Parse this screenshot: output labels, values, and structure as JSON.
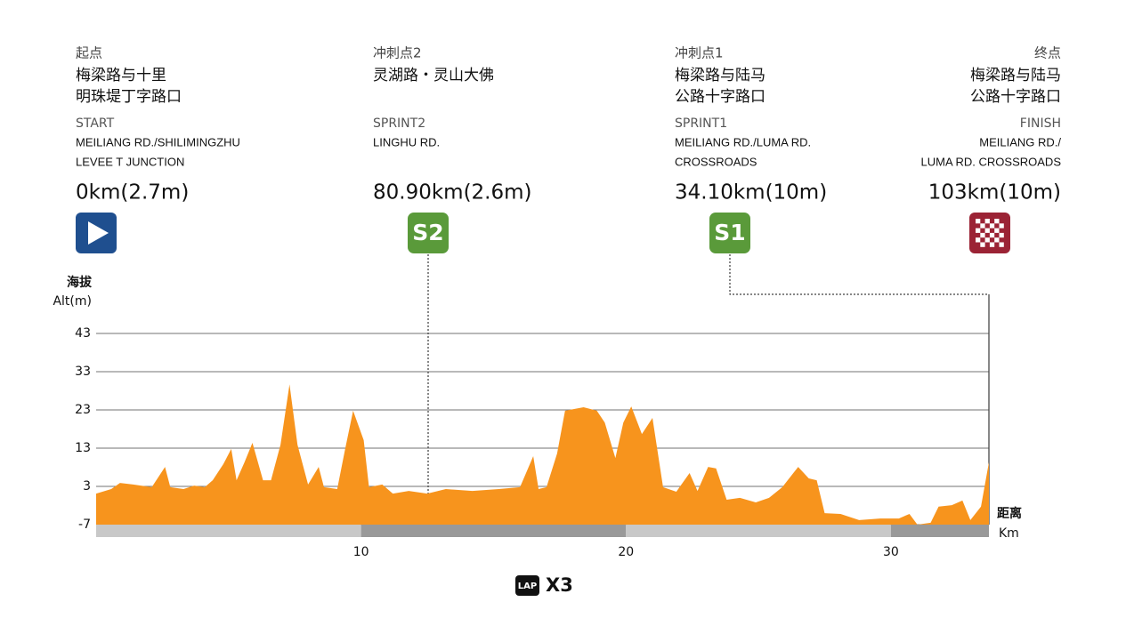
{
  "header": {
    "columns": [
      {
        "cn_label": "起点",
        "cn_name": [
          "梅梁路与十里",
          "明珠堤丁字路口"
        ],
        "en_label": "START",
        "en_name": [
          "MEILIANG RD./SHILIMINGZHU",
          "LEVEE T JUNCTION"
        ],
        "distance": "0km(2.7m)"
      },
      {
        "cn_label": "冲刺点2",
        "cn_name": [
          "灵湖路・灵山大佛"
        ],
        "en_label": "SPRINT2",
        "en_name": [
          "LINGHU RD."
        ],
        "distance": "80.90km(2.6m)",
        "badge": "S2"
      },
      {
        "cn_label": "冲刺点1",
        "cn_name": [
          "梅梁路与陆马",
          "公路十字路口"
        ],
        "en_label": "SPRINT1",
        "en_name": [
          "MEILIANG RD./LUMA RD.",
          "CROSSROADS"
        ],
        "distance": "34.10km(10m)",
        "badge": "S1"
      },
      {
        "cn_label": "终点",
        "cn_name": [
          "梅梁路与陆马",
          "公路十字路口"
        ],
        "en_label": "FINISH",
        "en_name": [
          "MEILIANG RD./",
          "LUMA RD. CROSSROADS"
        ],
        "distance": "103km(10m)"
      }
    ]
  },
  "chart_data": {
    "type": "area",
    "color": "#f7941d",
    "y_label": [
      "海拔",
      "Alt(m)"
    ],
    "x_label": [
      "距离",
      "Km"
    ],
    "xlim": [
      0,
      33.7
    ],
    "xticks": [
      10,
      20,
      30
    ],
    "ylim": [
      -7,
      43
    ],
    "yticks": [
      -7,
      3,
      13,
      23,
      33,
      43
    ],
    "grid": true,
    "x": [
      0,
      0.57,
      0.9,
      1.4,
      2.1,
      2.6,
      2.8,
      3.3,
      3.7,
      4.1,
      4.4,
      4.8,
      5.1,
      5.3,
      5.6,
      5.9,
      6.3,
      6.6,
      6.96,
      7.3,
      7.6,
      8.0,
      8.4,
      8.6,
      9.1,
      9.4,
      9.7,
      10.1,
      10.3,
      10.8,
      11.2,
      11.8,
      12.5,
      13.2,
      14.2,
      15.2,
      16.0,
      16.5,
      16.7,
      17.0,
      17.4,
      17.7,
      18.4,
      18.9,
      19.2,
      19.6,
      19.9,
      20.2,
      20.6,
      21.0,
      21.4,
      21.9,
      22.4,
      22.7,
      23.1,
      23.4,
      23.8,
      24.3,
      24.9,
      25.4,
      25.9,
      26.5,
      26.9,
      27.2,
      27.5,
      28.1,
      28.8,
      29.6,
      30.3,
      30.7,
      31.0,
      31.5,
      31.8,
      32.3,
      32.7,
      33.0,
      33.4,
      33.7
    ],
    "values": [
      1.1,
      2.3,
      3.9,
      3.5,
      2.8,
      8.1,
      2.8,
      2.3,
      3.2,
      2.8,
      4.6,
      8.8,
      12.8,
      4.6,
      9.3,
      14.4,
      4.6,
      4.6,
      13.9,
      29.7,
      13.9,
      3.5,
      8.1,
      2.8,
      2.3,
      12.8,
      22.8,
      15.1,
      2.8,
      3.5,
      1.1,
      1.8,
      1.1,
      2.3,
      1.8,
      2.3,
      2.8,
      10.9,
      2.3,
      2.8,
      11.6,
      22.8,
      23.7,
      22.8,
      19.7,
      10.4,
      19.7,
      23.9,
      16.7,
      20.9,
      2.8,
      1.6,
      6.5,
      1.8,
      8.1,
      7.7,
      -0.5,
      0,
      -1.2,
      0,
      2.8,
      8.1,
      5.1,
      4.6,
      -4,
      -4.2,
      -5.8,
      -5.4,
      -5.4,
      -4.2,
      -7,
      -6.5,
      -2.3,
      -1.9,
      -0.7,
      -5.8,
      -2.3,
      9.3
    ],
    "lap_icon": "LAP",
    "lap_count": "X3"
  }
}
